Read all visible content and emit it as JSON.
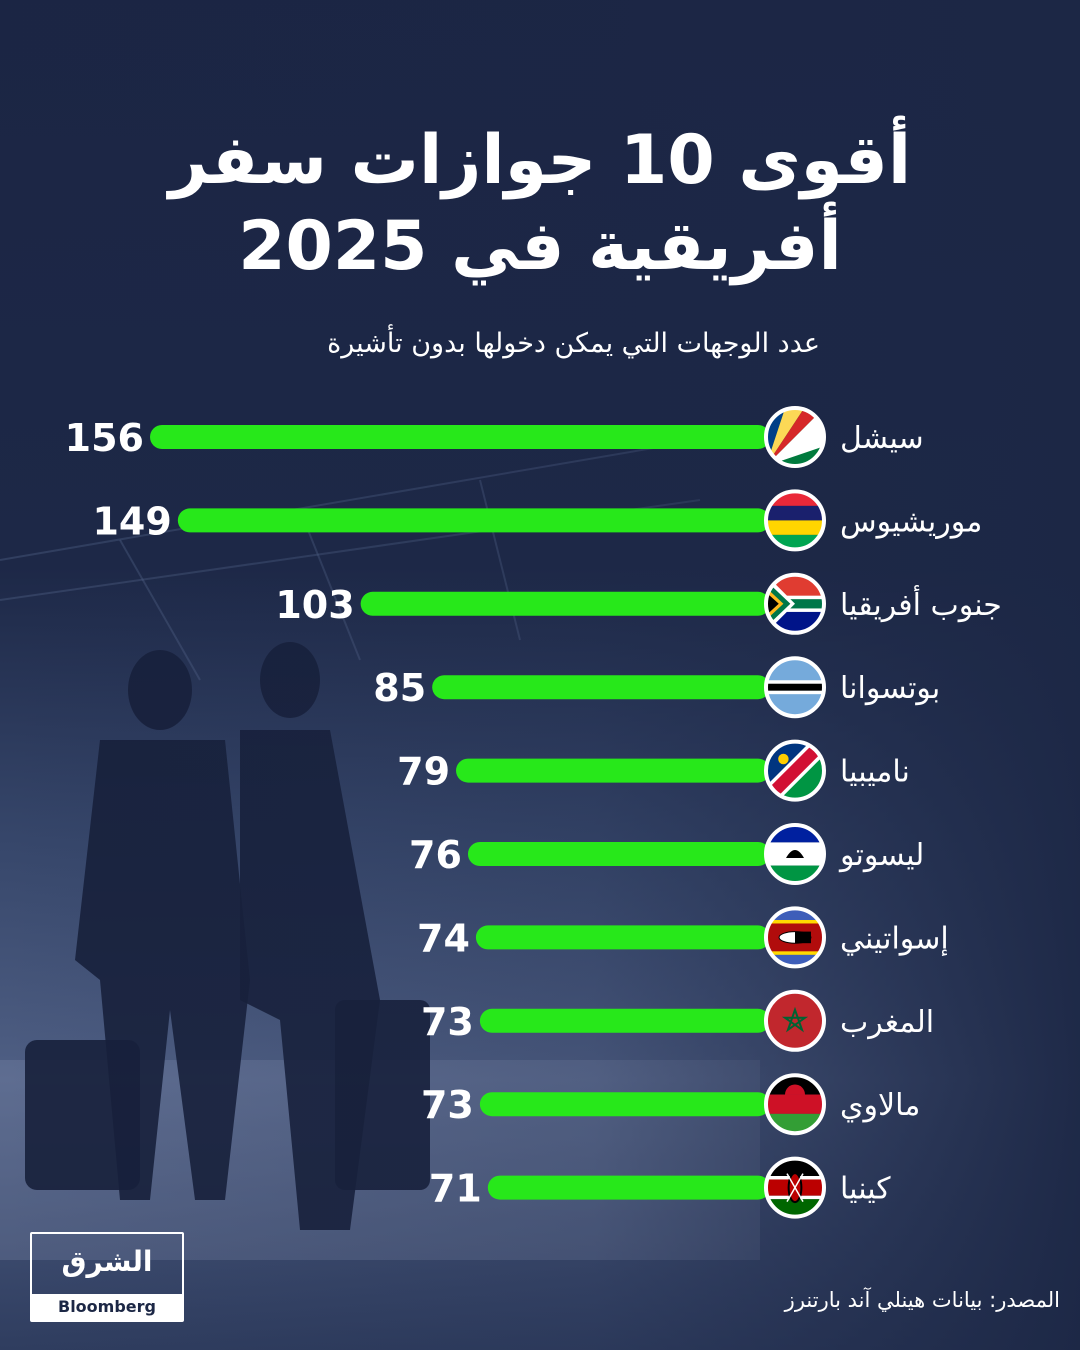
{
  "title_line1": "أقوى 10 جوازات سفر",
  "title_line2": "أفريقية في 2025",
  "subtitle": "عدد الوجهات التي يمكن دخولها بدون تأشيرة",
  "source": "المصدر: بيانات هينلي آند بارتنرز",
  "logo": {
    "name": "الشرق",
    "sub": "Bloomberg"
  },
  "colors": {
    "background": "#1c2745",
    "bar": "#27e81a",
    "text": "#ffffff"
  },
  "chart_data": {
    "type": "bar",
    "orientation": "horizontal",
    "title": "أقوى 10 جوازات سفر أفريقية في 2025",
    "subtitle": "عدد الوجهات التي يمكن دخولها بدون تأشيرة",
    "categories": [
      "سيشل",
      "موريشيوس",
      "جنوب أفريقيا",
      "بوتسوانا",
      "ناميبيا",
      "ليسوتو",
      "إسواتيني",
      "المغرب",
      "مالاوي",
      "كينيا"
    ],
    "values": [
      156,
      149,
      103,
      85,
      79,
      76,
      74,
      73,
      73,
      71
    ],
    "flags": [
      "seychelles-flag",
      "mauritius-flag",
      "south-africa-flag",
      "botswana-flag",
      "namibia-flag",
      "lesotho-flag",
      "eswatini-flag",
      "morocco-flag",
      "malawi-flag",
      "kenya-flag"
    ],
    "xlim": [
      0,
      156
    ],
    "grid": false,
    "legend": "none"
  }
}
